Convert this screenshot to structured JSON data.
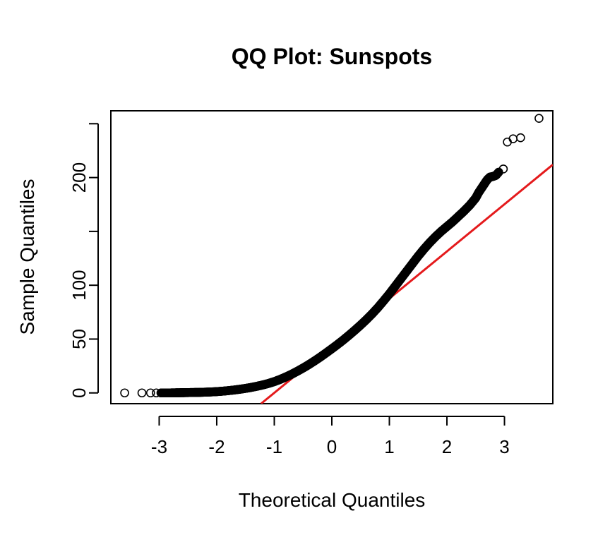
{
  "chart_data": {
    "type": "scatter",
    "title": "QQ Plot: Sunspots",
    "xlabel": "Theoretical Quantiles",
    "ylabel": "Sample Quantiles",
    "xlim": [
      -3.84,
      3.84
    ],
    "ylim": [
      -10,
      262
    ],
    "x_ticks": [
      -3,
      -2,
      -1,
      0,
      1,
      2,
      3
    ],
    "x_tick_labels": [
      "-3",
      "-2",
      "-1",
      "0",
      "1",
      "2",
      "3"
    ],
    "y_ticks": [
      0,
      50,
      100,
      150,
      200,
      250
    ],
    "y_tick_labels": [
      "0",
      "50",
      "100",
      "",
      "200",
      ""
    ],
    "grid": false,
    "legend": "none",
    "point_color": "#000000",
    "line_color": "#e41a1c",
    "reference_line": {
      "name": "qqline",
      "points": [
        [
          -1.23,
          -10
        ],
        [
          3.84,
          212
        ]
      ]
    },
    "series": [
      {
        "points": [
          [
            -3.6,
            0.0
          ],
          [
            -3.3,
            0.0
          ],
          [
            -3.15,
            0.0
          ],
          [
            -3.05,
            0.0
          ],
          [
            -2.97,
            0.0
          ],
          [
            -2.9,
            0.0
          ],
          [
            -2.8,
            0.0
          ],
          [
            -2.7,
            0.1
          ],
          [
            -2.6,
            0.2
          ],
          [
            -2.5,
            0.3
          ],
          [
            -2.4,
            0.4
          ],
          [
            -2.3,
            0.5
          ],
          [
            -2.2,
            0.7
          ],
          [
            -2.1,
            0.9
          ],
          [
            -2.0,
            1.2
          ],
          [
            -1.9,
            1.6
          ],
          [
            -1.8,
            2.1
          ],
          [
            -1.7,
            2.7
          ],
          [
            -1.6,
            3.4
          ],
          [
            -1.5,
            4.2
          ],
          [
            -1.4,
            5.1
          ],
          [
            -1.3,
            6.2
          ],
          [
            -1.2,
            7.4
          ],
          [
            -1.1,
            8.8
          ],
          [
            -1.0,
            10.5
          ],
          [
            -0.9,
            12.5
          ],
          [
            -0.8,
            14.8
          ],
          [
            -0.7,
            17.3
          ],
          [
            -0.6,
            20.1
          ],
          [
            -0.5,
            23.1
          ],
          [
            -0.4,
            26.3
          ],
          [
            -0.3,
            29.7
          ],
          [
            -0.2,
            33.3
          ],
          [
            -0.1,
            37.1
          ],
          [
            0.0,
            41.0
          ],
          [
            0.1,
            45.0
          ],
          [
            0.2,
            49.2
          ],
          [
            0.3,
            53.6
          ],
          [
            0.4,
            58.2
          ],
          [
            0.5,
            63.0
          ],
          [
            0.6,
            68.0
          ],
          [
            0.7,
            73.4
          ],
          [
            0.8,
            79.2
          ],
          [
            0.9,
            85.5
          ],
          [
            1.0,
            92.0
          ],
          [
            1.1,
            99.0
          ],
          [
            1.2,
            106.0
          ],
          [
            1.3,
            113.0
          ],
          [
            1.4,
            120.0
          ],
          [
            1.5,
            127.0
          ],
          [
            1.6,
            133.5
          ],
          [
            1.7,
            139.5
          ],
          [
            1.8,
            145.0
          ],
          [
            1.9,
            150.0
          ],
          [
            2.0,
            154.5
          ],
          [
            2.1,
            159.0
          ],
          [
            2.2,
            164.0
          ],
          [
            2.3,
            169.0
          ],
          [
            2.4,
            174.5
          ],
          [
            2.5,
            181.0
          ],
          [
            2.55,
            186.0
          ],
          [
            2.6,
            190.0
          ],
          [
            2.65,
            194.0
          ],
          [
            2.7,
            198.0
          ],
          [
            2.75,
            200.5
          ],
          [
            2.8,
            201.0
          ],
          [
            2.85,
            202.0
          ],
          [
            2.9,
            205.0
          ],
          [
            2.98,
            208.0
          ],
          [
            3.05,
            233.0
          ],
          [
            3.15,
            236.0
          ],
          [
            3.28,
            237.0
          ],
          [
            3.6,
            255.0
          ]
        ]
      }
    ]
  }
}
